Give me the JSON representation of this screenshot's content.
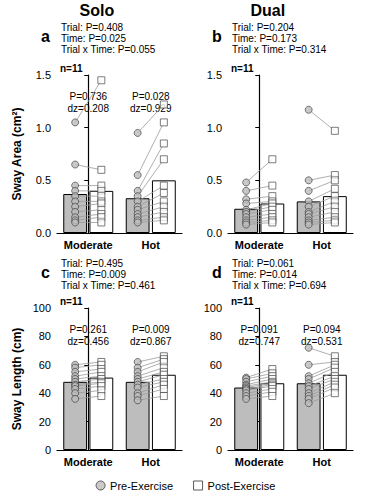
{
  "chart_data": [
    {
      "type": "bar",
      "panel": "a",
      "header": "Solo",
      "annotations": [
        "Trial: P=0.408",
        "Time: P=0.025",
        "Trial x Time: P=0.055"
      ],
      "n_label": "n=11",
      "ylabel": "Sway Area (cm²)",
      "categories": [
        "Moderate",
        "Hot"
      ],
      "group_labels": [
        [
          "P=0.736",
          "dz=0.208"
        ],
        [
          "P=0.028",
          "dz=0.929"
        ]
      ],
      "ylim": [
        0,
        1.5
      ],
      "yticks": [
        {
          "value": 0,
          "label": "0.0"
        },
        {
          "value": 0.5,
          "label": "0.5"
        },
        {
          "value": 1,
          "label": "1.0"
        },
        {
          "value": 1.5,
          "label": "1.5"
        }
      ],
      "legend": "bottom",
      "series": [
        {
          "name": "Pre-Exercise",
          "color": "#bdbdbd",
          "marker": "circle",
          "values": [
            0.37,
            0.33
          ],
          "points": [
            [
              1.05,
              0.65,
              0.45,
              0.4,
              0.35,
              0.3,
              0.25,
              0.2,
              0.15,
              0.12,
              0.1
            ],
            [
              0.95,
              0.55,
              0.4,
              0.35,
              0.3,
              0.25,
              0.22,
              0.18,
              0.15,
              0.12,
              0.1
            ]
          ]
        },
        {
          "name": "Post-Exercise",
          "color": "#ffffff",
          "marker": "square",
          "values": [
            0.4,
            0.5
          ],
          "points": [
            [
              1.45,
              0.6,
              0.45,
              0.4,
              0.35,
              0.3,
              0.28,
              0.22,
              0.18,
              0.15,
              0.1
            ],
            [
              1.22,
              1.05,
              0.85,
              0.7,
              0.45,
              0.38,
              0.3,
              0.25,
              0.2,
              0.15,
              0.12
            ]
          ]
        }
      ]
    },
    {
      "type": "bar",
      "panel": "b",
      "header": "Dual",
      "annotations": [
        "Trial: P=0.204",
        "Time: P=0.173",
        "Trial x Time: P=0.314"
      ],
      "n_label": "n=11",
      "categories": [
        "Moderate",
        "Hot"
      ],
      "ylim": [
        0,
        1.5
      ],
      "yticks": [
        {
          "value": 0,
          "label": "0.0"
        },
        {
          "value": 0.5,
          "label": "0.5"
        },
        {
          "value": 1,
          "label": "1.0"
        },
        {
          "value": 1.5,
          "label": "1.5"
        }
      ],
      "legend": "bottom",
      "series": [
        {
          "name": "Pre-Exercise",
          "color": "#bdbdbd",
          "marker": "circle",
          "values": [
            0.23,
            0.3
          ],
          "points": [
            [
              0.48,
              0.4,
              0.32,
              0.28,
              0.22,
              0.2,
              0.18,
              0.15,
              0.12,
              0.1,
              0.08
            ],
            [
              1.17,
              0.5,
              0.4,
              0.3,
              0.25,
              0.2,
              0.18,
              0.15,
              0.12,
              0.1,
              0.08
            ]
          ]
        },
        {
          "name": "Post-Exercise",
          "color": "#ffffff",
          "marker": "square",
          "values": [
            0.28,
            0.35
          ],
          "points": [
            [
              0.7,
              0.45,
              0.35,
              0.3,
              0.28,
              0.25,
              0.22,
              0.18,
              0.15,
              0.12,
              0.1
            ],
            [
              0.97,
              0.55,
              0.5,
              0.42,
              0.35,
              0.3,
              0.25,
              0.2,
              0.15,
              0.12,
              0.1
            ]
          ]
        }
      ]
    },
    {
      "type": "bar",
      "panel": "c",
      "annotations": [
        "Trial: P=0.495",
        "Time: P=0.009",
        "Trial x Time: P=0.461"
      ],
      "n_label": "n=11",
      "ylabel": "Sway Length (cm)",
      "categories": [
        "Moderate",
        "Hot"
      ],
      "group_labels": [
        [
          "P=0.261",
          "dz=0.456"
        ],
        [
          "P=0.009",
          "dz=0.867"
        ]
      ],
      "ylim": [
        0,
        100
      ],
      "yticks": [
        0,
        20,
        40,
        60,
        80,
        100
      ],
      "legend": "bottom",
      "series": [
        {
          "name": "Pre-Exercise",
          "color": "#bdbdbd",
          "marker": "circle",
          "values": [
            48,
            48
          ],
          "points": [
            [
              60,
              58,
              55,
              52,
              50,
              48,
              46,
              45,
              43,
              40,
              36
            ],
            [
              62,
              58,
              55,
              52,
              50,
              48,
              46,
              44,
              40,
              38,
              35
            ]
          ]
        },
        {
          "name": "Post-Exercise",
          "color": "#ffffff",
          "marker": "square",
          "values": [
            51,
            53
          ],
          "points": [
            [
              62,
              60,
              57,
              55,
              52,
              50,
              48,
              47,
              45,
              42,
              38
            ],
            [
              66,
              64,
              62,
              58,
              55,
              53,
              50,
              48,
              46,
              43,
              38
            ]
          ]
        }
      ]
    },
    {
      "type": "bar",
      "panel": "d",
      "annotations": [
        "Trial: P=0.061",
        "Time: P=0.014",
        "Trial x Time: P=0.694"
      ],
      "n_label": "n=11",
      "categories": [
        "Moderate",
        "Hot"
      ],
      "group_labels": [
        [
          "P=0.091",
          "dz=0.747"
        ],
        [
          "P=0.094",
          "dz=0.531"
        ]
      ],
      "ylim": [
        0,
        100
      ],
      "yticks": [
        0,
        20,
        40,
        60,
        80,
        100
      ],
      "legend": "bottom",
      "series": [
        {
          "name": "Pre-Exercise",
          "color": "#bdbdbd",
          "marker": "circle",
          "values": [
            44,
            47
          ],
          "points": [
            [
              51,
              50,
              48,
              46,
              45,
              44,
              43,
              42,
              40,
              38,
              36
            ],
            [
              72,
              60,
              52,
              50,
              47,
              45,
              43,
              40,
              38,
              36,
              33
            ]
          ]
        },
        {
          "name": "Post-Exercise",
          "color": "#ffffff",
          "marker": "square",
          "values": [
            47,
            53
          ],
          "points": [
            [
              57,
              54,
              52,
              50,
              48,
              47,
              46,
              45,
              43,
              41,
              38
            ],
            [
              66,
              62,
              60,
              58,
              55,
              52,
              50,
              48,
              46,
              44,
              40
            ]
          ]
        }
      ]
    }
  ]
}
